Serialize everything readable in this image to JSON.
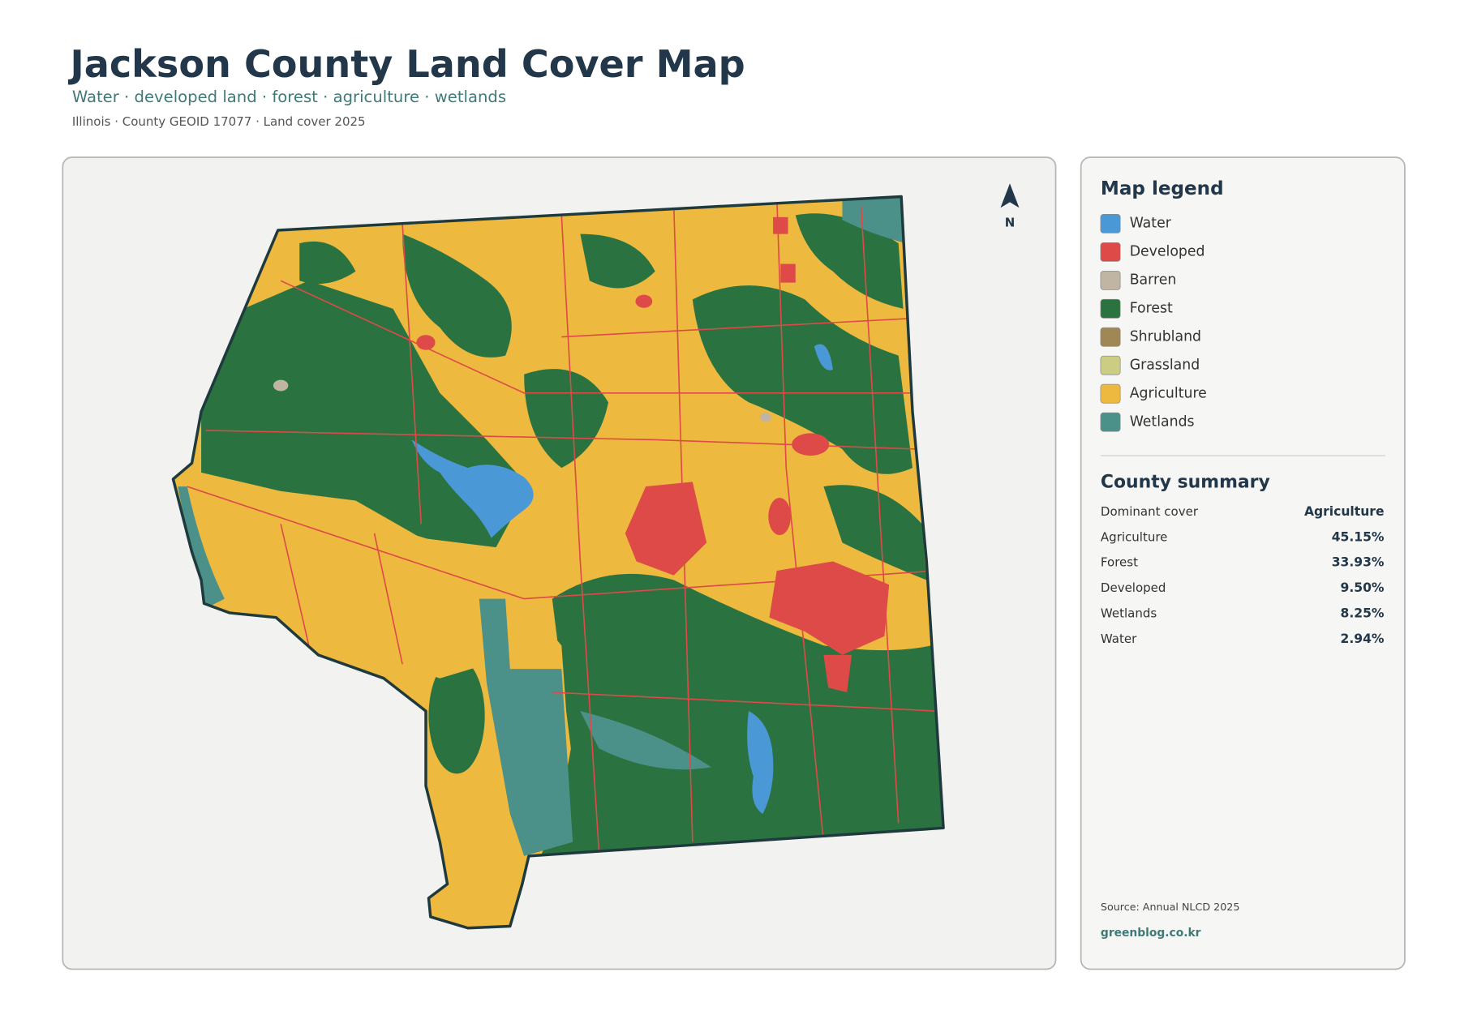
{
  "header": {
    "title": "Jackson County Land Cover Map",
    "subtitle": "Water · developed land · forest · agriculture · wetlands",
    "meta": "Illinois · County GEOID 17077 · Land cover 2025"
  },
  "map": {
    "north_label": "N"
  },
  "legend": {
    "title": "Map legend",
    "items": [
      {
        "label": "Water",
        "color": "#4a98d6"
      },
      {
        "label": "Developed",
        "color": "#dd4a48"
      },
      {
        "label": "Barren",
        "color": "#bfb5a2"
      },
      {
        "label": "Forest",
        "color": "#2a7340"
      },
      {
        "label": "Shrubland",
        "color": "#a08756"
      },
      {
        "label": "Grassland",
        "color": "#cbcd84"
      },
      {
        "label": "Agriculture",
        "color": "#eeb93f"
      },
      {
        "label": "Wetlands",
        "color": "#4c9189"
      }
    ]
  },
  "summary": {
    "title": "County summary",
    "rows": [
      [
        "Dominant cover",
        "Agriculture"
      ],
      [
        "Agriculture",
        "45.15%"
      ],
      [
        "Forest",
        "33.93%"
      ],
      [
        "Developed",
        "9.50%"
      ],
      [
        "Wetlands",
        "8.25%"
      ],
      [
        "Water",
        "2.94%"
      ]
    ]
  },
  "footer": {
    "source": "Source: Annual NLCD 2025",
    "site": "greenblog.co.kr"
  }
}
